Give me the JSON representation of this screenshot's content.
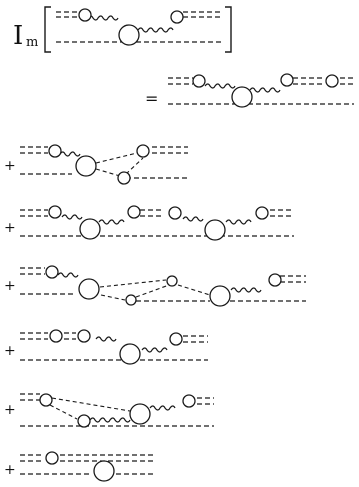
{
  "header": {
    "im_symbol": "I",
    "im_subscript": "m"
  },
  "equals_sign": "=",
  "plus_sign": "+",
  "term_count": 7,
  "elements": {
    "propagator_lines": "dashed",
    "interaction_lines": "wavy",
    "vertex_shape": "open-circle"
  }
}
